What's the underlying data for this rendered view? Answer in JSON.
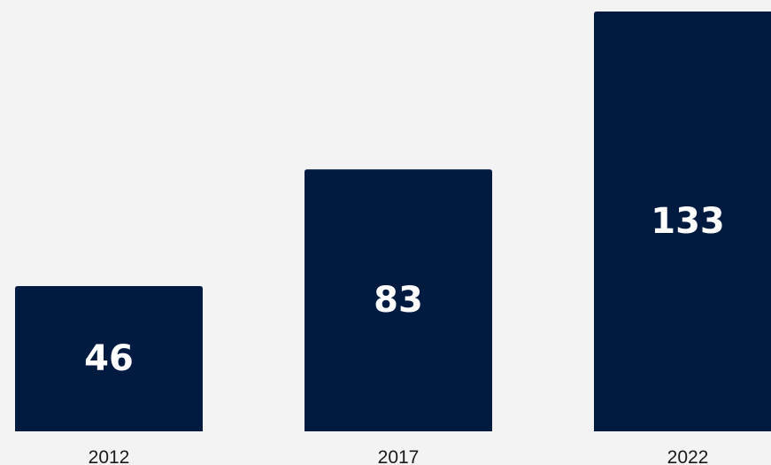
{
  "colors": {
    "background": "#f3f3f3",
    "bar": "#001a40",
    "value_text": "#ffffff",
    "tick_text": "#1a1a1a"
  },
  "chart_data": {
    "type": "bar",
    "categories": [
      "2012",
      "2017",
      "2022"
    ],
    "values": [
      46,
      83,
      133
    ],
    "title": "",
    "xlabel": "",
    "ylabel": "",
    "ylim": [
      0,
      133
    ],
    "grid": false,
    "data_labels": true
  }
}
